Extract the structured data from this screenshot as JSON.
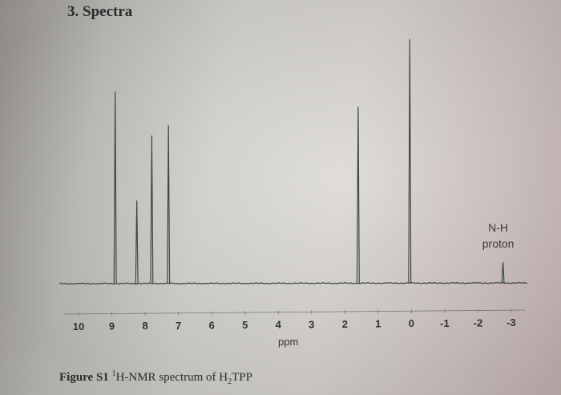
{
  "section_heading": "3. Spectra",
  "chart_data": {
    "type": "line",
    "xlabel": "ppm",
    "x_ticks": [
      "10",
      "9",
      "8",
      "7",
      "6",
      "5",
      "4",
      "3",
      "2",
      "1",
      "0",
      "-1",
      "-2",
      "-3"
    ],
    "xlim": [
      10.5,
      -3.5
    ],
    "reversed_x_axis": true,
    "grid": false,
    "peaks": [
      {
        "ppm": 8.9,
        "relative_height": 0.74
      },
      {
        "ppm": 8.25,
        "relative_height": 0.32
      },
      {
        "ppm": 7.8,
        "relative_height": 0.57
      },
      {
        "ppm": 7.3,
        "relative_height": 0.61
      },
      {
        "ppm": 1.6,
        "relative_height": 0.68
      },
      {
        "ppm": 0.05,
        "relative_height": 0.94
      },
      {
        "ppm": -2.75,
        "relative_height": 0.08
      }
    ],
    "annotations": [
      {
        "text_line1": "N-H",
        "text_line2": "proton",
        "ppm": -2.75
      }
    ]
  },
  "caption": {
    "figure_label": "Figure S1",
    "sup": "1",
    "text_main": "H-NMR spectrum of H",
    "sub": "2",
    "text_end": "TPP"
  }
}
